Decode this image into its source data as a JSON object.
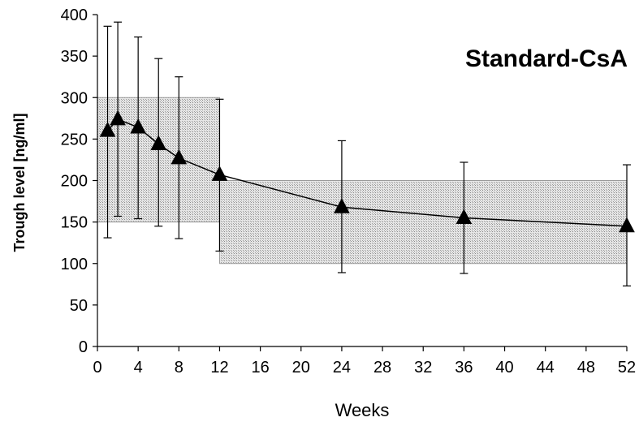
{
  "chart_data": {
    "type": "line",
    "title": "Standard-CsA",
    "xlabel": "Weeks",
    "ylabel": "Trough level [ng/ml]",
    "xlim": [
      0,
      52
    ],
    "ylim": [
      0,
      400
    ],
    "x_ticks": [
      0,
      4,
      8,
      12,
      16,
      20,
      24,
      28,
      32,
      36,
      40,
      44,
      48,
      52
    ],
    "y_ticks": [
      0,
      50,
      100,
      150,
      200,
      250,
      300,
      350,
      400
    ],
    "grid": false,
    "legend": "none",
    "series": [
      {
        "x": [
          1,
          2,
          4,
          6,
          8,
          12,
          24,
          36,
          52
        ],
        "y": [
          260,
          274,
          264,
          244,
          227,
          207,
          168,
          155,
          145
        ],
        "error_low": [
          131,
          157,
          154,
          145,
          130,
          115,
          89,
          88,
          73
        ],
        "error_high": [
          386,
          391,
          373,
          347,
          325,
          298,
          248,
          222,
          219
        ],
        "marker": "triangle",
        "color": "#000000"
      }
    ],
    "target_ranges": [
      {
        "x": [
          0,
          12
        ],
        "y": [
          150,
          300
        ]
      },
      {
        "x": [
          12,
          52
        ],
        "y": [
          100,
          200
        ]
      }
    ],
    "colors": {
      "band_fill": "#d8d8d8",
      "line": "#000000"
    }
  }
}
